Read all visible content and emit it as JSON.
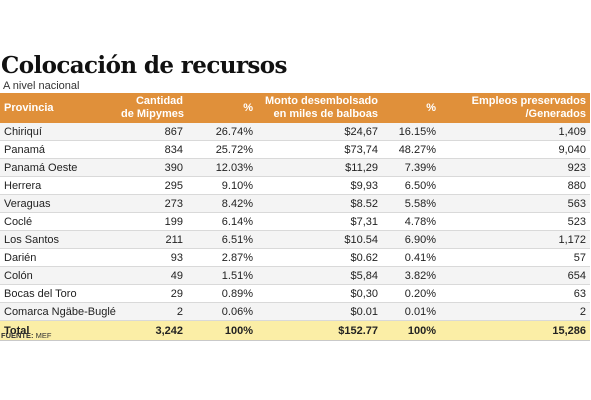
{
  "title": "Colocación de recursos",
  "subtitle": "A nivel nacional",
  "columns": [
    {
      "line1": "Provincia",
      "line2": ""
    },
    {
      "line1": "Cantidad",
      "line2": "de Mipymes"
    },
    {
      "line1": "%",
      "line2": ""
    },
    {
      "line1": "Monto desembolsado",
      "line2": "en miles de balboas"
    },
    {
      "line1": "%",
      "line2": ""
    },
    {
      "line1": "Empleos preservados",
      "line2": "/Generados"
    }
  ],
  "rows": [
    {
      "provincia": "Chiriquí",
      "cantidad": "867",
      "pct_cantidad": "26.74%",
      "monto": "$24,67",
      "pct_monto": "16.15%",
      "empleos": "1,409"
    },
    {
      "provincia": "Panamá",
      "cantidad": "834",
      "pct_cantidad": "25.72%",
      "monto": "$73,74",
      "pct_monto": "48.27%",
      "empleos": "9,040"
    },
    {
      "provincia": "Panamá Oeste",
      "cantidad": "390",
      "pct_cantidad": "12.03%",
      "monto": "$11,29",
      "pct_monto": "7.39%",
      "empleos": "923"
    },
    {
      "provincia": "Herrera",
      "cantidad": "295",
      "pct_cantidad": "9.10%",
      "monto": "$9,93",
      "pct_monto": "6.50%",
      "empleos": "880"
    },
    {
      "provincia": "Veraguas",
      "cantidad": "273",
      "pct_cantidad": "8.42%",
      "monto": "$8.52",
      "pct_monto": "5.58%",
      "empleos": "563"
    },
    {
      "provincia": "Coclé",
      "cantidad": "199",
      "pct_cantidad": "6.14%",
      "monto": "$7,31",
      "pct_monto": "4.78%",
      "empleos": "523"
    },
    {
      "provincia": "Los Santos",
      "cantidad": "211",
      "pct_cantidad": "6.51%",
      "monto": "$10.54",
      "pct_monto": "6.90%",
      "empleos": "1,172"
    },
    {
      "provincia": "Darién",
      "cantidad": "93",
      "pct_cantidad": "2.87%",
      "monto": "$0.62",
      "pct_monto": "0.41%",
      "empleos": "57"
    },
    {
      "provincia": "Colón",
      "cantidad": "49",
      "pct_cantidad": "1.51%",
      "monto": "$5,84",
      "pct_monto": "3.82%",
      "empleos": "654"
    },
    {
      "provincia": "Bocas del Toro",
      "cantidad": "29",
      "pct_cantidad": "0.89%",
      "monto": "$0,30",
      "pct_monto": "0.20%",
      "empleos": "63"
    },
    {
      "provincia": "Comarca Ngäbe-Buglé",
      "cantidad": "2",
      "pct_cantidad": "0.06%",
      "monto": "$0.01",
      "pct_monto": "0.01%",
      "empleos": "2"
    }
  ],
  "total": {
    "provincia": "Total",
    "cantidad": "3,242",
    "pct_cantidad": "100%",
    "monto": "$152.77",
    "pct_monto": "100%",
    "empleos": "15,286"
  },
  "source": {
    "label": "FUENTE:",
    "value": "MEF"
  },
  "colors": {
    "header_bg": "#e0903a",
    "total_bg": "#fbeea6",
    "row_alt_bg": "#f4f4f4"
  }
}
